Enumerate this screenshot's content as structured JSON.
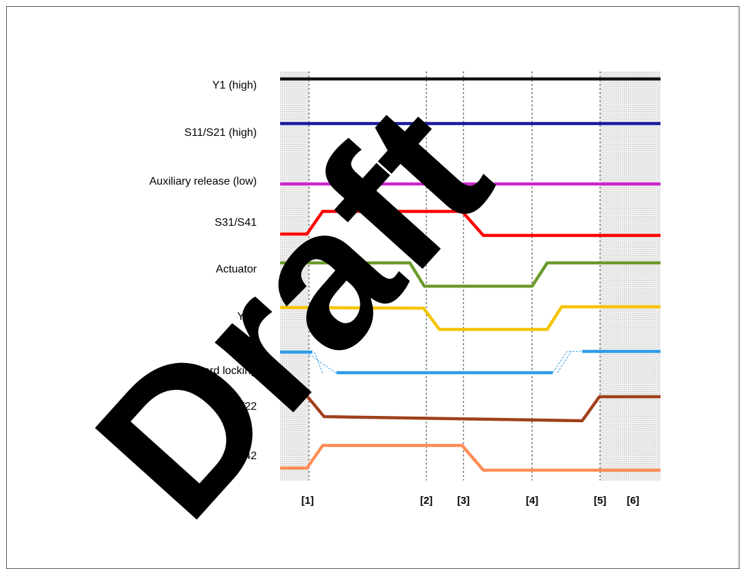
{
  "signals": [
    {
      "key": "y1",
      "label": "Y1 (high)",
      "color": "#111111"
    },
    {
      "key": "s11s21",
      "label": "S11/S21 (high)",
      "color": "#1a1a9e"
    },
    {
      "key": "aux",
      "label": "Auxiliary release (low)",
      "color": "#cc22cc"
    },
    {
      "key": "s31s41",
      "label": "S31/S41",
      "color": "#ff0000"
    },
    {
      "key": "actuator",
      "label": "Actuator",
      "color": "#6b9a2c"
    },
    {
      "key": "y32",
      "label": "Y32",
      "color": "#f5c400"
    },
    {
      "key": "guard",
      "label": "Guard locking",
      "color": "#2f9be8"
    },
    {
      "key": "o1222",
      "label": "12/22",
      "color": "#a0401c"
    },
    {
      "key": "o3242",
      "label": "32/42",
      "color": "#ff8c55"
    }
  ],
  "markers": [
    "[1]",
    "[2]",
    "[3]",
    "[4]",
    "[5]",
    "[6]"
  ],
  "watermark": {
    "text": "Draft",
    "color": "#000000"
  }
}
